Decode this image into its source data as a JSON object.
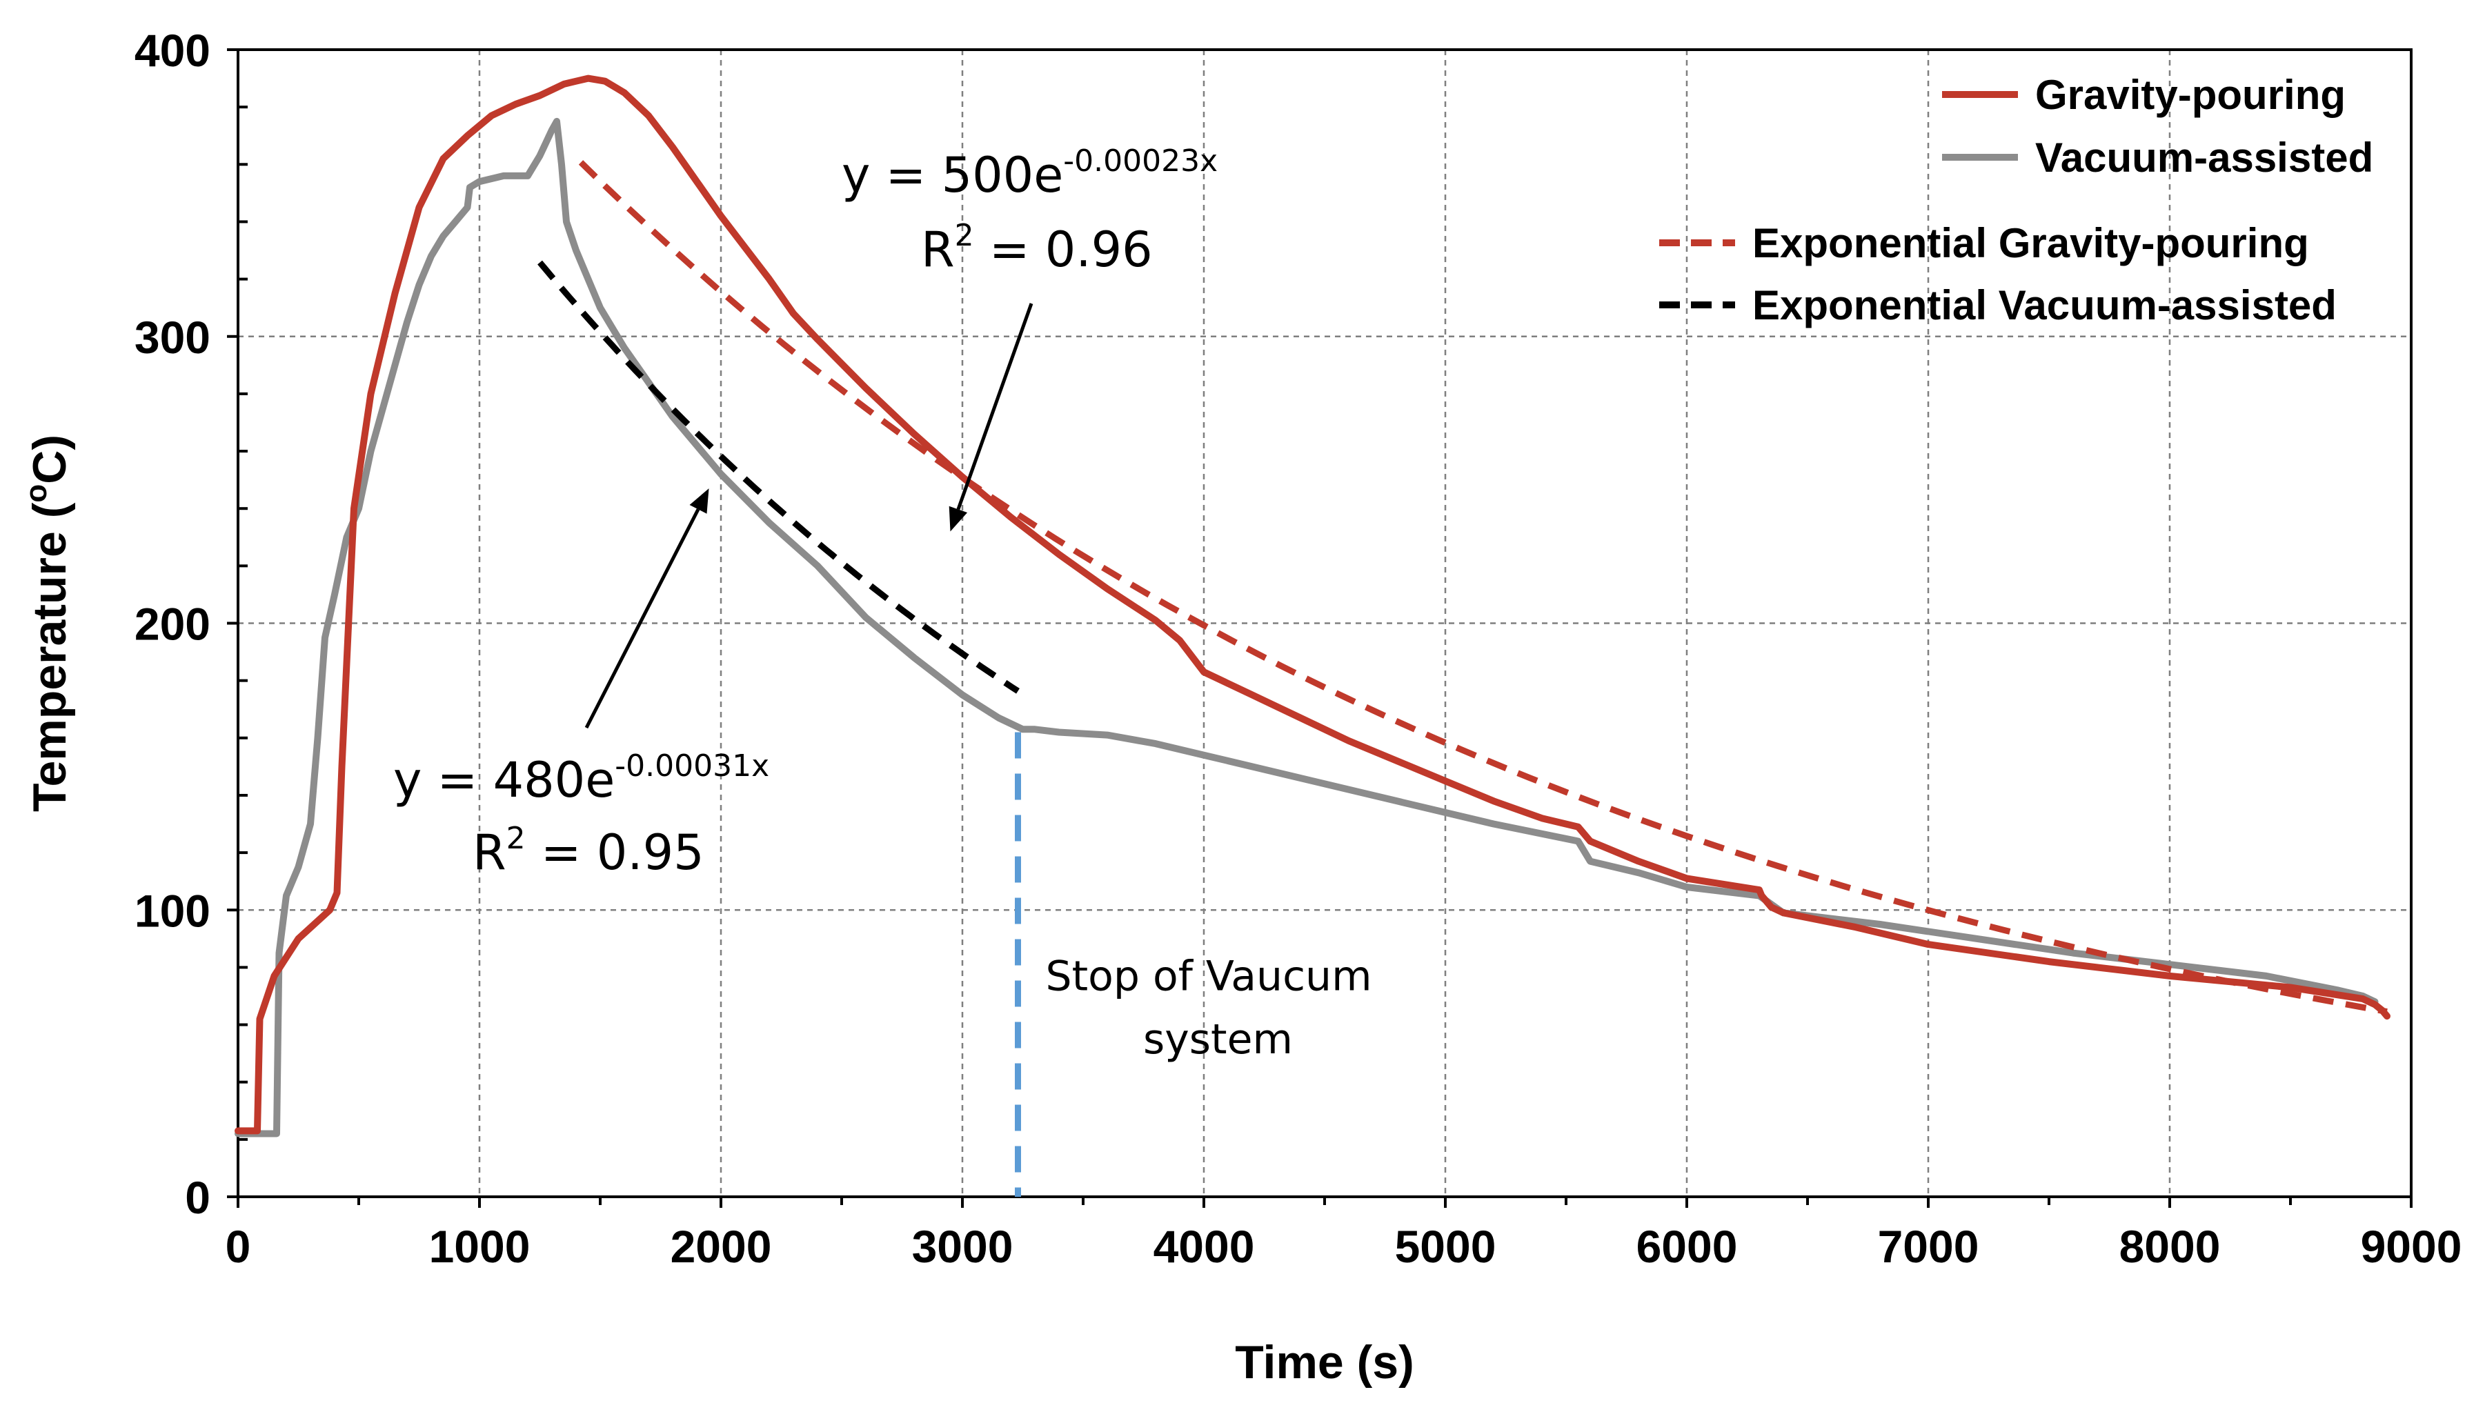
{
  "chart_data": {
    "type": "line",
    "xlabel": "Time (s)",
    "ylabel": "Temperature  (°C)",
    "ylabel_parts": {
      "main": "Temperature  (",
      "sup": "o",
      "end": "C)"
    },
    "xlim": [
      0,
      9000
    ],
    "ylim": [
      0,
      400
    ],
    "x_ticks": [
      "0",
      "1000",
      "2000",
      "3000",
      "4000",
      "5000",
      "6000",
      "7000",
      "8000",
      "9000"
    ],
    "y_ticks": [
      "0",
      "100",
      "200",
      "300",
      "400"
    ],
    "grid": true,
    "legend_position": "top-right",
    "series": [
      {
        "name": "Gravity-pouring",
        "color": "#c0392b",
        "style": "solid",
        "x": [
          0,
          80,
          90,
          150,
          250,
          380,
          410,
          430,
          480,
          550,
          650,
          750,
          850,
          950,
          1050,
          1150,
          1250,
          1350,
          1400,
          1450,
          1520,
          1600,
          1700,
          1800,
          1900,
          2000,
          2100,
          2200,
          2300,
          2400,
          2600,
          2800,
          3000,
          3200,
          3400,
          3600,
          3800,
          3900,
          4000,
          4200,
          4400,
          4600,
          4800,
          5000,
          5200,
          5400,
          5550,
          5600,
          5800,
          6000,
          6300,
          6310,
          6350,
          6400,
          6700,
          7000,
          7500,
          8000,
          8500,
          8800,
          8850,
          8880,
          8900
        ],
        "y": [
          23,
          23,
          62,
          77,
          90,
          100,
          106,
          150,
          240,
          280,
          315,
          345,
          362,
          370,
          377,
          381,
          384,
          388,
          389,
          390,
          389,
          385,
          377,
          366,
          354,
          342,
          331,
          320,
          308,
          299,
          282,
          266,
          251,
          237,
          224,
          212,
          201,
          194,
          183,
          175,
          167,
          159,
          152,
          145,
          138,
          132,
          129,
          124,
          117,
          111,
          107,
          105,
          101,
          99,
          94,
          88,
          82,
          77,
          73,
          69,
          67,
          65,
          63
        ]
      },
      {
        "name": "Vacuum-assisted",
        "color": "#8c8c8c",
        "style": "solid",
        "x": [
          0,
          160,
          170,
          200,
          250,
          300,
          330,
          360,
          400,
          450,
          500,
          550,
          600,
          650,
          700,
          750,
          800,
          850,
          900,
          950,
          960,
          1000,
          1100,
          1200,
          1250,
          1300,
          1320,
          1340,
          1360,
          1400,
          1500,
          1600,
          1800,
          2000,
          2200,
          2400,
          2600,
          2800,
          3000,
          3150,
          3250,
          3300,
          3400,
          3600,
          3800,
          4000,
          4400,
          4800,
          5200,
          5550,
          5600,
          5800,
          6000,
          6300,
          6400,
          6800,
          7200,
          7600,
          8000,
          8400,
          8700,
          8800,
          8850
        ],
        "y": [
          22,
          22,
          85,
          105,
          115,
          130,
          160,
          195,
          210,
          230,
          240,
          260,
          275,
          290,
          305,
          318,
          328,
          335,
          340,
          345,
          352,
          354,
          356,
          356,
          363,
          372,
          375,
          360,
          340,
          330,
          310,
          296,
          272,
          252,
          235,
          220,
          202,
          188,
          175,
          167,
          163,
          163,
          162,
          161,
          158,
          154,
          146,
          138,
          130,
          124,
          117,
          113,
          108,
          105,
          99,
          95,
          90,
          85,
          81,
          77,
          72,
          70,
          68
        ]
      },
      {
        "name": "Exponential Gravity-pouring",
        "color": "#c0392b",
        "style": "dashed",
        "fit": {
          "a": 500,
          "b": -0.00023,
          "x_start": 1420,
          "x_end": 8900
        }
      },
      {
        "name": "Exponential Vacuum-assisted",
        "color": "#000000",
        "style": "dashed",
        "fit": {
          "a": 480,
          "b": -0.00031,
          "x_start": 1250,
          "x_end": 3230
        }
      }
    ],
    "annotations": {
      "gravity_equation": {
        "prefix": "y = 500e",
        "exponent": "-0.00023x",
        "r2_prefix": "R",
        "r2_sup": "2",
        "r2_value": " = 0.96",
        "arrow_to": [
          2950,
          232
        ]
      },
      "vacuum_equation": {
        "prefix": "y = 480e",
        "exponent": "-0.00031x",
        "r2_prefix": "R",
        "r2_sup": "2",
        "r2_value": " = 0.95",
        "arrow_to": [
          1950,
          247
        ]
      },
      "stop_marker": {
        "x": 3230,
        "color": "#5b9bd5",
        "line1": "Stop of Vaucum",
        "line2": "system"
      }
    }
  }
}
